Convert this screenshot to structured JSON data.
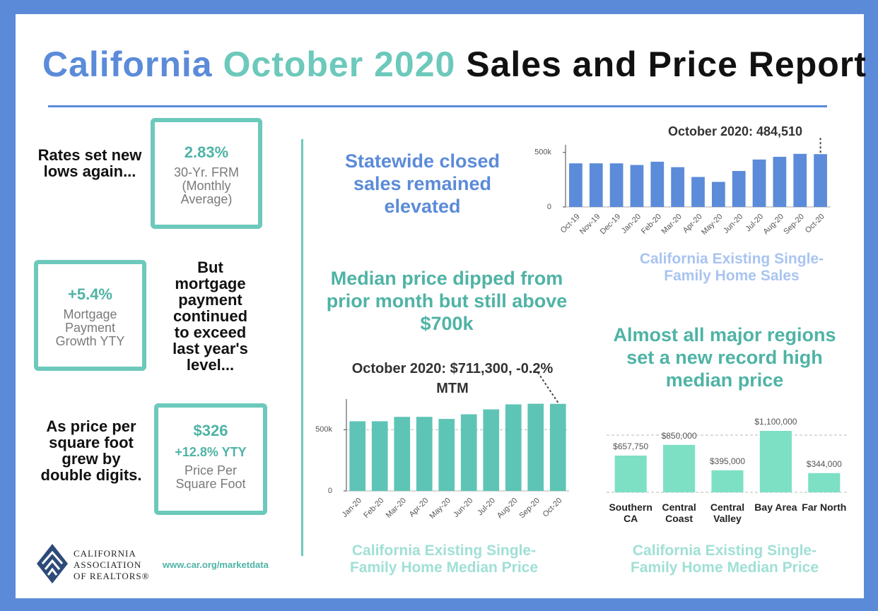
{
  "header": {
    "title_place": "California",
    "title_period": "October 2020",
    "title_rest": "Sales and Price Report"
  },
  "stats": [
    {
      "text": "Rates set new lows again...",
      "figure": "2.83%",
      "label": "30-Yr. FRM (Monthly Average)"
    },
    {
      "text": "But mortgage payment continued to exceed last year's level...",
      "figure": "+5.4%",
      "label": "Mortgage Payment Growth YTY"
    },
    {
      "text": "As price per square foot grew by double digits.",
      "figure": "$326",
      "sub": "+12.8% YTY",
      "label": "Price Per Square Foot"
    }
  ],
  "footer": {
    "org_line1": "CALIFORNIA",
    "org_line2": "ASSOCIATION",
    "org_line3": "OF REALTORS®",
    "url": "www.car.org/marketdata"
  },
  "chart_data": [
    {
      "type": "bar",
      "headline": "Statewide closed sales remained elevated",
      "annotation": "October 2020: 484,510",
      "caption": "California Existing Single-Family Home Sales",
      "categories": [
        "Oct-19",
        "Nov-19",
        "Dec-19",
        "Jan-20",
        "Feb-20",
        "Mar-20",
        "Apr-20",
        "May-20",
        "Jun-20",
        "Jul-20",
        "Aug-20",
        "Sep-20",
        "Oct-20"
      ],
      "values": [
        400000,
        400000,
        400000,
        385000,
        415000,
        365000,
        275000,
        230000,
        330000,
        435000,
        460000,
        487000,
        484510
      ],
      "color": "#5b8bd9",
      "ylim": [
        0,
        570000
      ],
      "yticks": [
        0,
        {
          "value": 500000,
          "label": "500k"
        }
      ],
      "grid": false
    },
    {
      "type": "bar",
      "headline": "Median price dipped from prior month but still above $700k",
      "annotation": "October 2020: $711,300, -0.2% MTM",
      "caption": "California Existing Single-Family Home Median Price",
      "categories": [
        "Jan-20",
        "Feb-20",
        "Mar-20",
        "Apr-20",
        "May-20",
        "Jun-20",
        "Jul-20",
        "Aug-20",
        "Sep-20",
        "Oct-20"
      ],
      "values": [
        569000,
        569000,
        605000,
        605000,
        588000,
        626000,
        666000,
        707000,
        712000,
        711300
      ],
      "color": "#5ec4b6",
      "ylim": [
        0,
        750000
      ],
      "yticks": [
        0,
        {
          "value": 500000,
          "label": "500k"
        }
      ],
      "grid": true
    },
    {
      "type": "bar",
      "headline": "Almost all major regions set a new record high median price",
      "caption": "California Existing Single-Family Home Median Price",
      "categories": [
        "Southern CA",
        "Central Coast",
        "Central Valley",
        "Bay Area",
        "Far North"
      ],
      "values": [
        657750,
        850000,
        395000,
        1100000,
        344000
      ],
      "value_labels": [
        "$657,750",
        "$850,000",
        "$395,000",
        "$1,100,000",
        "$344,000"
      ],
      "color": "#7de0c4",
      "ylim": [
        0,
        1100000
      ]
    }
  ]
}
